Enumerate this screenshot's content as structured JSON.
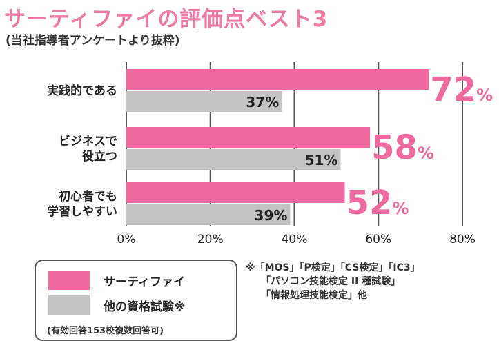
{
  "header": {
    "title": "サーティファイの評価点ベスト3",
    "subtitle": "(当社指導者アンケートより抜粋)"
  },
  "chart_data": {
    "type": "bar",
    "orientation": "horizontal",
    "categories": [
      [
        "実践的である"
      ],
      [
        "ビジネスで",
        "役立つ"
      ],
      [
        "初心者でも",
        "学習しやすい"
      ]
    ],
    "series": [
      {
        "name": "サーティファイ",
        "values": [
          72,
          58,
          52
        ],
        "color": "#ef6aa0"
      },
      {
        "name": "他の資格試験※",
        "values": [
          37,
          51,
          39
        ],
        "color": "#c4c4c4"
      }
    ],
    "xlim": [
      0,
      80
    ],
    "ticks": [
      0,
      20,
      40,
      60,
      80
    ],
    "tick_labels": [
      "0%",
      "20%",
      "40%",
      "60%",
      "80%"
    ],
    "value_suffix": "%",
    "grid": true
  },
  "legend": {
    "items": [
      {
        "label": "サーティファイ",
        "color": "#ef6aa0"
      },
      {
        "label": "他の資格試験※",
        "color": "#c4c4c4"
      }
    ],
    "note": "(有効回答153校複数回答可)"
  },
  "footnote": {
    "lines": [
      "※「MOS」「P検定」「CS検定」「IC3」",
      "「パソコン技能検定 II 種試験」",
      "「情報処理技能検定」他"
    ]
  }
}
